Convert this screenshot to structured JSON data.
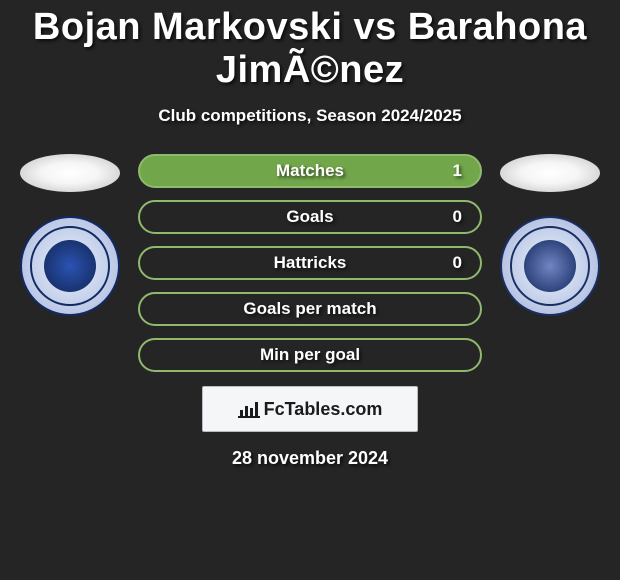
{
  "background_color": "#252525",
  "title": "Bojan Markovski vs Barahona JimÃ©nez",
  "subtitle": "Club competitions, Season 2024/2025",
  "date": "28 november 2024",
  "footer_brand": "FcTables.com",
  "stats": [
    {
      "label": "Matches",
      "value": "1",
      "border_color": "#8fb96d",
      "fill_color": "#72a64a"
    },
    {
      "label": "Goals",
      "value": "0",
      "border_color": "#8fb96d",
      "fill_color": "transparent"
    },
    {
      "label": "Hattricks",
      "value": "0",
      "border_color": "#8fb96d",
      "fill_color": "transparent"
    },
    {
      "label": "Goals per match",
      "value": "",
      "border_color": "#8fb96d",
      "fill_color": "transparent"
    },
    {
      "label": "Min per goal",
      "value": "",
      "border_color": "#8fb96d",
      "fill_color": "transparent"
    }
  ],
  "left_club_alt": "Ethnikos Achna crest",
  "right_club_alt": "Apollon Limassol crest"
}
